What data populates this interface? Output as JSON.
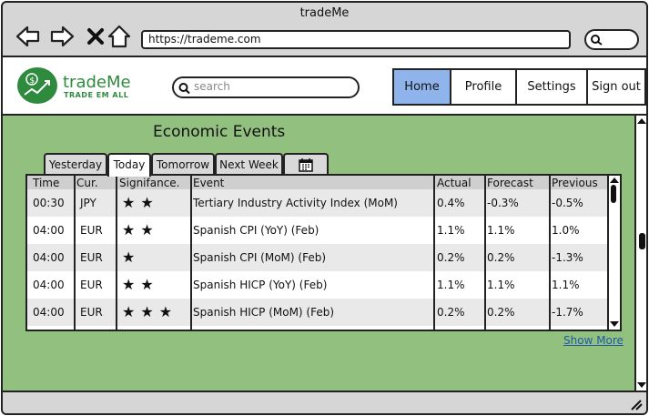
{
  "window": {
    "title": "tradeMe"
  },
  "browser": {
    "url": "https://trademe.com",
    "icons": [
      "back-arrow-icon",
      "forward-arrow-icon",
      "close-x-icon",
      "home-icon",
      "search-icon"
    ]
  },
  "header": {
    "logo_name": "tradeMe",
    "logo_tagline": "TRADE EM ALL",
    "search_placeholder": "search",
    "nav": [
      {
        "label": "Home",
        "active": true
      },
      {
        "label": "Profile",
        "active": false
      },
      {
        "label": "Settings",
        "active": false
      },
      {
        "label": "Sign out",
        "active": false
      }
    ]
  },
  "main": {
    "title": "Economic Events",
    "tabs": [
      {
        "label": "Yesterday",
        "active": false
      },
      {
        "label": "Today",
        "active": true
      },
      {
        "label": "Tomorrow",
        "active": false
      },
      {
        "label": "Next Week",
        "active": false
      },
      {
        "label": "",
        "icon": "calendar-icon",
        "active": false
      }
    ],
    "columns": [
      "Time",
      "Cur.",
      "Signifance.",
      "Event",
      "Actual",
      "Forecast",
      "Previous"
    ],
    "rows": [
      {
        "time": "00:30",
        "cur": "JPY",
        "significance": 2,
        "stars": "★★",
        "event": "Tertiary Industry Activity Index (MoM)",
        "actual": "0.4%",
        "forecast": "-0.3%",
        "previous": "-0.5%"
      },
      {
        "time": "04:00",
        "cur": "EUR",
        "significance": 2,
        "stars": "★★",
        "event": "Spanish CPI (YoY) (Feb)",
        "actual": "1.1%",
        "forecast": "1.1%",
        "previous": "1.0%"
      },
      {
        "time": "04:00",
        "cur": "EUR",
        "significance": 1,
        "stars": "★",
        "event": "Spanish CPI (MoM) (Feb)",
        "actual": "0.2%",
        "forecast": "0.2%",
        "previous": "-1.3%"
      },
      {
        "time": "04:00",
        "cur": "EUR",
        "significance": 2,
        "stars": "★★",
        "event": "Spanish HICP (YoY) (Feb)",
        "actual": "1.1%",
        "forecast": "1.1%",
        "previous": "1.1%"
      },
      {
        "time": "04:00",
        "cur": "EUR",
        "significance": 3,
        "stars": "★★★",
        "event": "Spanish HICP (MoM) (Feb)",
        "actual": "0.2%",
        "forecast": "0.2%",
        "previous": "-1.7%"
      }
    ],
    "show_more": "Show More"
  },
  "colors": {
    "page_bg": "#92c07f",
    "active_nav": "#8fb4ec",
    "brand_green": "#2e8b3e",
    "link_blue": "#1f5aa6"
  }
}
